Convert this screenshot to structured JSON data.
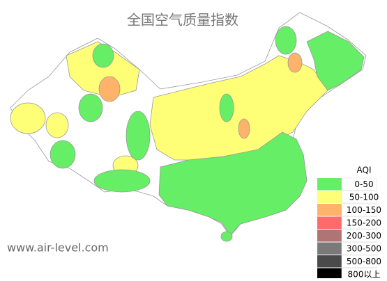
{
  "title": "全国空气质量指数",
  "watermark": "www.air-level.com",
  "legend": {
    "title": "AQI",
    "items": [
      {
        "label": "0-50",
        "color": "#66ee66"
      },
      {
        "label": "50-100",
        "color": "#ffff77"
      },
      {
        "label": "100-150",
        "color": "#ffb36a"
      },
      {
        "label": "150-200",
        "color": "#ff6b6b"
      },
      {
        "label": "200-300",
        "color": "#b07474"
      },
      {
        "label": "300-500",
        "color": "#7a7a7a"
      },
      {
        "label": "500-800",
        "color": "#4a4a4a"
      },
      {
        "label": "800以上",
        "color": "#000000"
      }
    ]
  }
}
